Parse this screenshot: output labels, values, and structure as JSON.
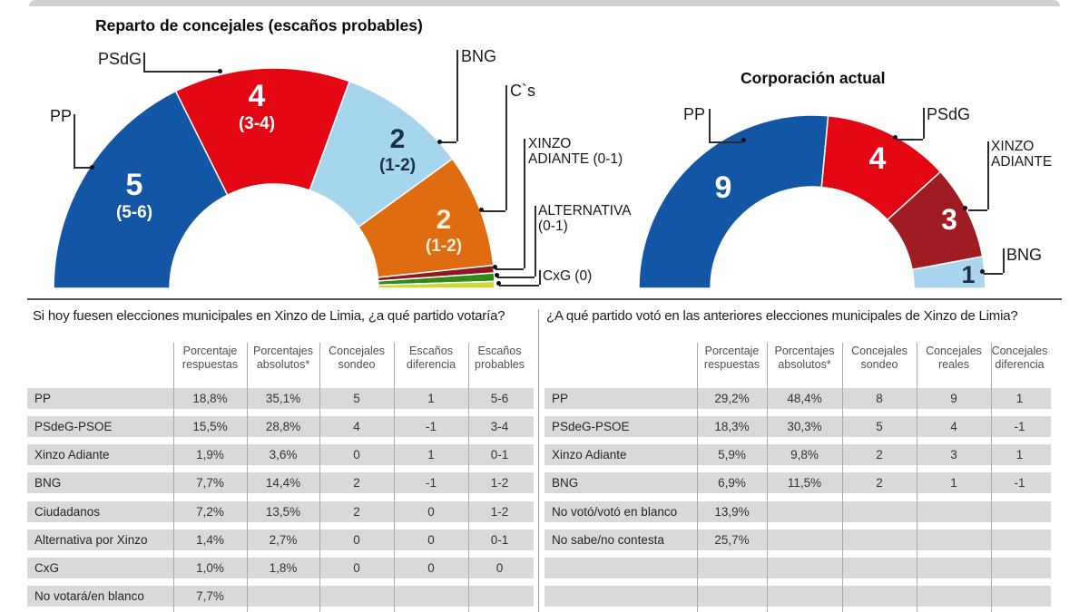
{
  "page": {
    "top_separator": true
  },
  "chart_data": [
    {
      "type": "pie",
      "variant": "half-donut",
      "title": "Reparto de concejales (escaños probables)",
      "legend_position": "callouts",
      "segments": [
        {
          "party": "PP",
          "sondeo_seats": "5",
          "probable_seats": "5-6",
          "angle_deg": 63.5,
          "color": "#1356a5",
          "text_color": "#ffffff"
        },
        {
          "party": "PSdG",
          "sondeo_seats": "4",
          "probable_seats": "3-4",
          "angle_deg": 46.5,
          "color": "#e30613",
          "text_color": "#ffffff"
        },
        {
          "party": "BNG",
          "sondeo_seats": "2",
          "probable_seats": "1-2",
          "angle_deg": 34.0,
          "color": "#a6d5ee",
          "text_color": "#1c2e4a"
        },
        {
          "party": "C`s",
          "sondeo_seats": "2",
          "probable_seats": "1-2",
          "angle_deg": 30.0,
          "color": "#e06c12",
          "text_color": "#fdf3d7"
        },
        {
          "party": "XINZO ADIANTE",
          "sondeo_seats": "",
          "probable_seats": "0-1",
          "angle_deg": 2.0,
          "color": "#8e181d",
          "text_color": "#ffffff"
        },
        {
          "party": "ALTERNATIVA",
          "sondeo_seats": "",
          "probable_seats": "0-1",
          "angle_deg": 2.2,
          "color": "#2f8a1a",
          "text_color": "#ffffff"
        },
        {
          "party": "CxG",
          "sondeo_seats": "",
          "probable_seats": "0",
          "angle_deg": 1.8,
          "color": "#c9d936",
          "text_color": "#333333"
        }
      ],
      "callouts": [
        "PP",
        "PSdG",
        "BNG",
        "C`s",
        "XINZO\nADIANTE (0-1)",
        "ALTERNATIVA\n(0-1)",
        "CxG (0)"
      ]
    },
    {
      "type": "pie",
      "variant": "half-donut",
      "title": "Corporación actual",
      "legend_position": "callouts",
      "segments": [
        {
          "party": "PP",
          "seats": "9",
          "angle_deg": 95.3,
          "color": "#1356a5",
          "text_color": "#ffffff"
        },
        {
          "party": "PSdG",
          "seats": "4",
          "angle_deg": 42.4,
          "color": "#e30613",
          "text_color": "#ffffff"
        },
        {
          "party": "XINZO ADIANTE",
          "seats": "3",
          "angle_deg": 31.7,
          "color": "#9e1c22",
          "text_color": "#ffffff"
        },
        {
          "party": "BNG",
          "seats": "1",
          "angle_deg": 10.6,
          "color": "#a9d6ee",
          "text_color": "#1c2e4a"
        }
      ],
      "callouts": [
        "PP",
        "PSdG",
        "XINZO\nADIANTE",
        "BNG"
      ]
    },
    {
      "type": "table",
      "title": "Si hoy fuesen elecciones municipales en Xinzo de Limia, ¿a qué partido votaría?",
      "columns": [
        "Porcentaje respuestas",
        "Porcentajes absolutos*",
        "Concejales sondeo",
        "Escaños diferencia",
        "Escaños probables"
      ],
      "rows": [
        {
          "label": "PP",
          "values": [
            "18,8%",
            "35,1%",
            "5",
            "1",
            "5-6"
          ]
        },
        {
          "label": "PSdeG-PSOE",
          "values": [
            "15,5%",
            "28,8%",
            "4",
            "-1",
            "3-4"
          ]
        },
        {
          "label": "Xinzo Adiante",
          "values": [
            "1,9%",
            "3,6%",
            "0",
            "1",
            "0-1"
          ]
        },
        {
          "label": "BNG",
          "values": [
            "7,7%",
            "14,4%",
            "2",
            "-1",
            "1-2"
          ]
        },
        {
          "label": "Ciudadanos",
          "values": [
            "7,2%",
            "13,5%",
            "2",
            "0",
            "1-2"
          ]
        },
        {
          "label": "Alternativa por Xinzo",
          "values": [
            "1,4%",
            "2,7%",
            "0",
            "0",
            "0-1"
          ]
        },
        {
          "label": "CxG",
          "values": [
            "1,0%",
            "1,8%",
            "0",
            "0",
            "0"
          ]
        },
        {
          "label": "No votará/en blanco",
          "values": [
            "7,7%",
            "",
            "",
            "",
            ""
          ]
        }
      ]
    },
    {
      "type": "table",
      "title": "¿A qué partido votó en las anteriores elecciones municipales de Xinzo de Limia?",
      "columns": [
        "Porcentaje respuestas",
        "Porcentajes absolutos*",
        "Concejales sondeo",
        "Concejales reales",
        "Concejales diferencia"
      ],
      "rows": [
        {
          "label": "PP",
          "values": [
            "29,2%",
            "48,4%",
            "8",
            "9",
            "1"
          ]
        },
        {
          "label": "PSdeG-PSOE",
          "values": [
            "18,3%",
            "30,3%",
            "5",
            "4",
            "-1"
          ]
        },
        {
          "label": "Xinzo Adiante",
          "values": [
            "5,9%",
            "9,8%",
            "2",
            "3",
            "1"
          ]
        },
        {
          "label": "BNG",
          "values": [
            "6,9%",
            "11,5%",
            "2",
            "1",
            "-1"
          ]
        },
        {
          "label": "No votó/votó en blanco",
          "values": [
            "13,9%",
            "",
            "",
            "",
            ""
          ]
        },
        {
          "label": "No sabe/no contesta",
          "values": [
            "25,7%",
            "",
            "",
            "",
            ""
          ]
        },
        {
          "label": "",
          "values": [
            "",
            "",
            "",
            "",
            ""
          ]
        },
        {
          "label": "",
          "values": [
            "",
            "",
            "",
            "",
            ""
          ]
        }
      ]
    }
  ]
}
